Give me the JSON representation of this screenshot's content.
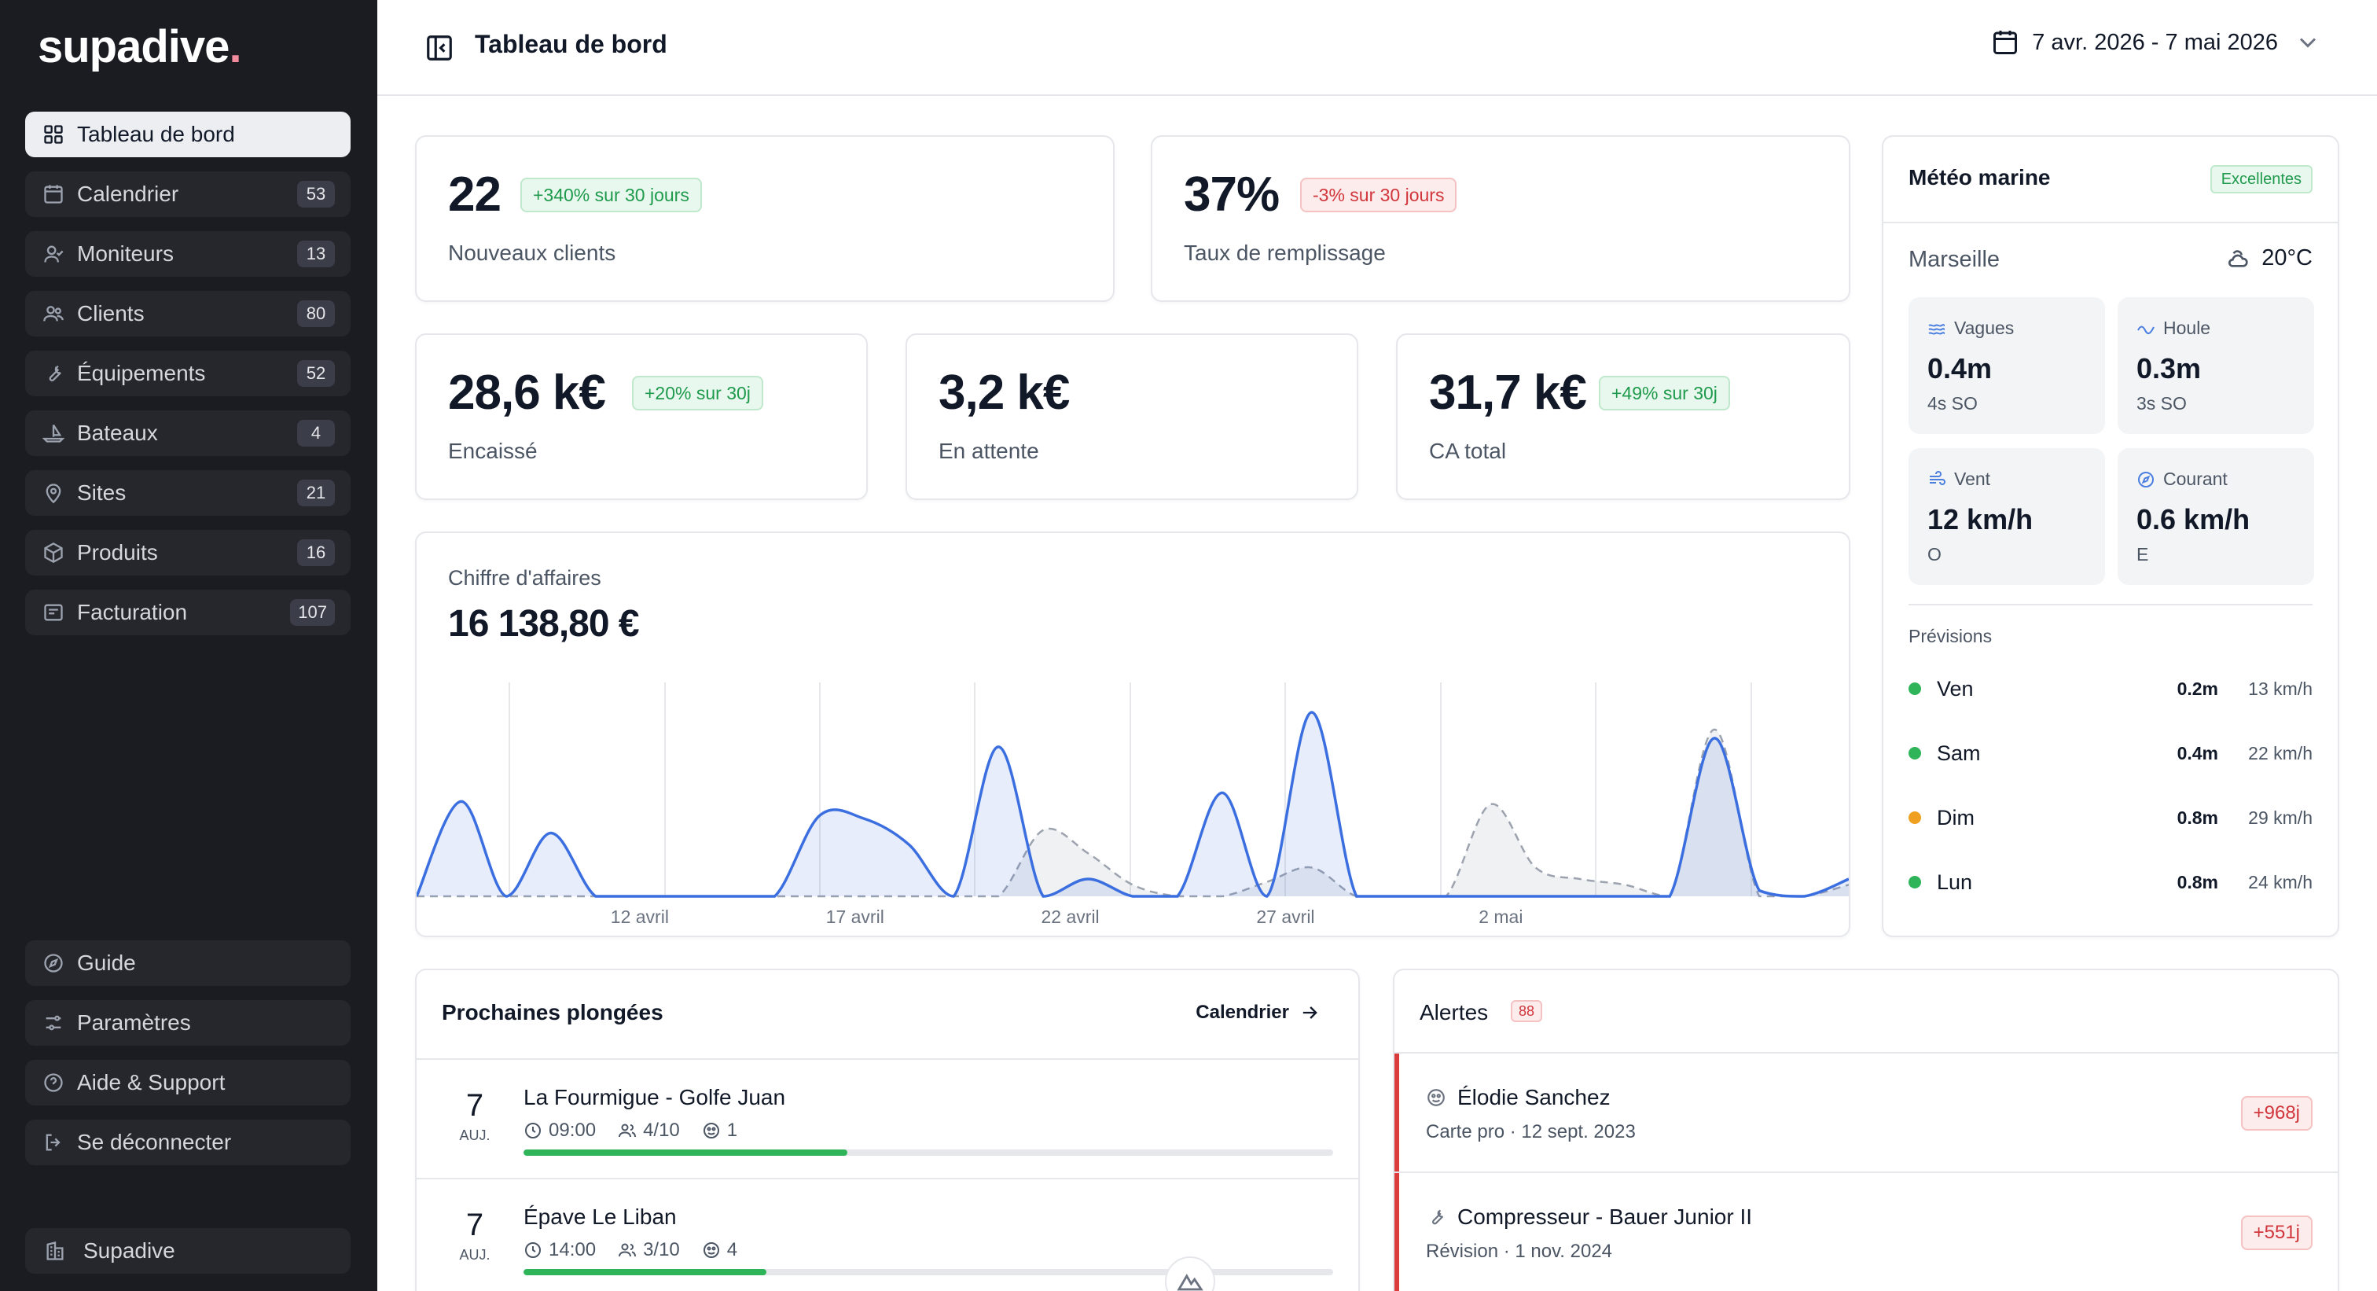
{
  "brand": {
    "name": "supadive",
    "dot": "."
  },
  "sidebar": {
    "items": [
      {
        "label": "Tableau de bord",
        "icon": "grid-icon",
        "badge": null
      },
      {
        "label": "Calendrier",
        "icon": "calendar-icon",
        "badge": "53"
      },
      {
        "label": "Moniteurs",
        "icon": "user-check-icon",
        "badge": "13"
      },
      {
        "label": "Clients",
        "icon": "users-icon",
        "badge": "80"
      },
      {
        "label": "Équipements",
        "icon": "wrench-icon",
        "badge": "52"
      },
      {
        "label": "Bateaux",
        "icon": "sailboat-icon",
        "badge": "4"
      },
      {
        "label": "Sites",
        "icon": "map-pin-icon",
        "badge": "21"
      },
      {
        "label": "Produits",
        "icon": "package-icon",
        "badge": "16"
      },
      {
        "label": "Facturation",
        "icon": "receipt-icon",
        "badge": "107"
      }
    ],
    "footer": [
      {
        "label": "Guide",
        "icon": "compass-icon"
      },
      {
        "label": "Paramètres",
        "icon": "sliders-icon"
      },
      {
        "label": "Aide & Support",
        "icon": "help-circle-icon"
      },
      {
        "label": "Se déconnecter",
        "icon": "logout-icon"
      }
    ],
    "org": {
      "label": "Supadive",
      "icon": "building-icon"
    }
  },
  "header": {
    "title": "Tableau de bord",
    "date_range": "7 avr. 2026 - 7 mai 2026"
  },
  "kpis": {
    "new_clients": {
      "value": "22",
      "trend": "+340% sur 30 jours",
      "label": "Nouveaux clients"
    },
    "fill_rate": {
      "value": "37%",
      "trend": "-3% sur 30 jours",
      "label": "Taux de remplissage"
    },
    "cashed": {
      "value": "28,6 k€",
      "trend": "+20% sur 30j",
      "label": "Encaissé"
    },
    "pending": {
      "value": "3,2 k€",
      "label": "En attente"
    },
    "total": {
      "value": "31,7 k€",
      "trend": "+49% sur 30j",
      "label": "CA total"
    }
  },
  "revenue": {
    "label": "Chiffre d'affaires",
    "value": "16 138,80 €"
  },
  "chart_data": {
    "type": "area",
    "x_tick_labels": [
      "12 avril",
      "17 avril",
      "22 avril",
      "27 avril",
      "2 mai"
    ],
    "x_day_index": [
      5,
      10,
      15,
      20,
      25
    ],
    "series": [
      {
        "values": [
          0,
          0.33,
          0,
          0.22,
          0,
          0,
          0,
          0,
          0,
          0.28,
          0.27,
          0.18,
          0,
          0.52,
          0,
          0.06,
          0,
          0,
          0.36,
          0,
          0.64,
          0,
          0,
          0,
          0,
          0,
          0,
          0,
          0.0,
          0.55,
          0.02,
          0.0,
          0.06
        ],
        "color": "#3b6fe0",
        "style": "solid"
      },
      {
        "values": [
          0,
          0,
          0,
          0,
          0,
          0,
          0,
          0,
          0,
          0,
          0,
          0,
          0,
          0,
          0.23,
          0.15,
          0.04,
          0,
          0,
          0.05,
          0.1,
          0,
          0,
          0,
          0.32,
          0.1,
          0.06,
          0.04,
          0.0,
          0.58,
          0.0,
          0.0,
          0.04
        ],
        "color": "#9ca3af",
        "style": "dashed"
      }
    ]
  },
  "weather": {
    "title": "Météo marine",
    "status": "Excellentes",
    "city": "Marseille",
    "temp": "20°C",
    "tiles": [
      {
        "label": "Vagues",
        "value": "0.4m",
        "sub": "4s SO",
        "icon": "waves-icon"
      },
      {
        "label": "Houle",
        "value": "0.3m",
        "sub": "3s SO",
        "icon": "swell-icon"
      },
      {
        "label": "Vent",
        "value": "12 km/h",
        "sub": "O",
        "icon": "wind-icon"
      },
      {
        "label": "Courant",
        "value": "0.6 km/h",
        "sub": "E",
        "icon": "compass-icon"
      }
    ],
    "forecast_title": "Prévisions",
    "forecast": [
      {
        "day": "Ven",
        "wave": "0.2m",
        "wind": "13 km/h",
        "color": "#2fb45a"
      },
      {
        "day": "Sam",
        "wave": "0.4m",
        "wind": "22 km/h",
        "color": "#2fb45a"
      },
      {
        "day": "Dim",
        "wave": "0.8m",
        "wind": "29 km/h",
        "color": "#f0a020"
      },
      {
        "day": "Lun",
        "wave": "0.8m",
        "wind": "24 km/h",
        "color": "#2fb45a"
      }
    ]
  },
  "dives": {
    "title": "Prochaines plongées",
    "calendar_link": "Calendrier",
    "items": [
      {
        "day": "7",
        "day_label": "AUJ.",
        "name": "La Fourmigue - Golfe Juan",
        "time": "09:00",
        "spots": "4/10",
        "instructors": "1",
        "progress": 0.4
      },
      {
        "day": "7",
        "day_label": "AUJ.",
        "name": "Épave Le Liban",
        "time": "14:00",
        "spots": "3/10",
        "instructors": "4",
        "progress": 0.3
      }
    ]
  },
  "alerts": {
    "title": "Alertes",
    "count": "88",
    "items": [
      {
        "name": "Élodie Sanchez",
        "sub": "Carte pro · 12 sept. 2023",
        "tag": "+968j",
        "icon": "user-badge-icon"
      },
      {
        "name": "Compresseur - Bauer Junior II",
        "sub": "Révision · 1 nov. 2024",
        "tag": "+551j",
        "icon": "wrench-icon"
      }
    ]
  }
}
